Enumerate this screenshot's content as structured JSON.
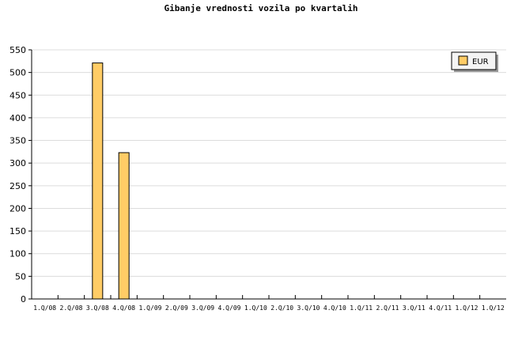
{
  "chart_data": {
    "type": "bar",
    "title": "Gibanje vrednosti vozila po kvartalih",
    "categories": [
      "1.Q/08",
      "2.Q/08",
      "3.Q/08",
      "4.Q/08",
      "1.Q/09",
      "2.Q/09",
      "3.Q/09",
      "4.Q/09",
      "1.Q/10",
      "2.Q/10",
      "3.Q/10",
      "4.Q/10",
      "1.Q/11",
      "2.Q/11",
      "3.Q/11",
      "4.Q/11",
      "1.Q/12",
      "1.Q/12"
    ],
    "series": [
      {
        "name": "EUR",
        "values": [
          0,
          0,
          521,
          323,
          0,
          0,
          0,
          0,
          0,
          0,
          0,
          0,
          0,
          0,
          0,
          0,
          0,
          0
        ],
        "color": "#ffcc66"
      }
    ],
    "ylim": [
      0,
      550
    ],
    "yticks": [
      0,
      50,
      100,
      150,
      200,
      250,
      300,
      350,
      400,
      450,
      500,
      550
    ],
    "grid": true,
    "legend": "top-right"
  }
}
